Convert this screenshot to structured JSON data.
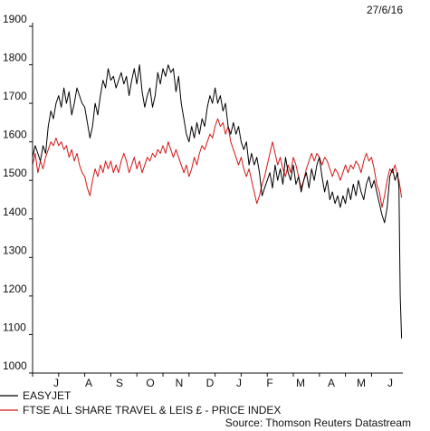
{
  "chart_data": {
    "type": "line",
    "title": "",
    "date_label": "27/6/16",
    "xlabel": "",
    "ylabel": "",
    "ylim": [
      1000,
      1900
    ],
    "yticks": [
      1000,
      1100,
      1200,
      1300,
      1400,
      1500,
      1600,
      1700,
      1800,
      1900
    ],
    "month_labels": [
      "J",
      "A",
      "S",
      "O",
      "N",
      "D",
      "J",
      "F",
      "M",
      "A",
      "M",
      "J"
    ],
    "grid": false,
    "legend_position": "bottom-left",
    "source": "Source: Thomson Reuters Datastream",
    "x_units": "months from June 2015 to June 2016",
    "series": [
      {
        "name": "EASYJET",
        "color": "#000000",
        "points": [
          [
            0.0,
            1560
          ],
          [
            0.1,
            1590
          ],
          [
            0.2,
            1570
          ],
          [
            0.3,
            1550
          ],
          [
            0.4,
            1590
          ],
          [
            0.5,
            1570
          ],
          [
            0.6,
            1640
          ],
          [
            0.7,
            1680
          ],
          [
            0.8,
            1660
          ],
          [
            0.9,
            1700
          ],
          [
            1.0,
            1720
          ],
          [
            1.1,
            1690
          ],
          [
            1.2,
            1740
          ],
          [
            1.3,
            1700
          ],
          [
            1.4,
            1730
          ],
          [
            1.5,
            1670
          ],
          [
            1.6,
            1700
          ],
          [
            1.7,
            1740
          ],
          [
            1.8,
            1720
          ],
          [
            1.9,
            1700
          ],
          [
            2.0,
            1690
          ],
          [
            2.1,
            1650
          ],
          [
            2.2,
            1610
          ],
          [
            2.3,
            1640
          ],
          [
            2.4,
            1700
          ],
          [
            2.5,
            1670
          ],
          [
            2.6,
            1720
          ],
          [
            2.7,
            1760
          ],
          [
            2.8,
            1740
          ],
          [
            2.9,
            1790
          ],
          [
            3.0,
            1760
          ],
          [
            3.1,
            1770
          ],
          [
            3.2,
            1740
          ],
          [
            3.3,
            1760
          ],
          [
            3.4,
            1780
          ],
          [
            3.5,
            1750
          ],
          [
            3.6,
            1770
          ],
          [
            3.7,
            1720
          ],
          [
            3.8,
            1760
          ],
          [
            3.9,
            1790
          ],
          [
            4.0,
            1750
          ],
          [
            4.1,
            1800
          ],
          [
            4.2,
            1730
          ],
          [
            4.3,
            1690
          ],
          [
            4.4,
            1720
          ],
          [
            4.5,
            1740
          ],
          [
            4.6,
            1690
          ],
          [
            4.7,
            1720
          ],
          [
            4.8,
            1780
          ],
          [
            4.9,
            1750
          ],
          [
            5.0,
            1790
          ],
          [
            5.1,
            1770
          ],
          [
            5.2,
            1800
          ],
          [
            5.3,
            1780
          ],
          [
            5.4,
            1790
          ],
          [
            5.5,
            1730
          ],
          [
            5.6,
            1770
          ],
          [
            5.7,
            1700
          ],
          [
            5.8,
            1660
          ],
          [
            5.9,
            1620
          ],
          [
            6.0,
            1600
          ],
          [
            6.1,
            1640
          ],
          [
            6.2,
            1610
          ],
          [
            6.3,
            1650
          ],
          [
            6.4,
            1620
          ],
          [
            6.5,
            1660
          ],
          [
            6.6,
            1640
          ],
          [
            6.7,
            1690
          ],
          [
            6.8,
            1720
          ],
          [
            6.9,
            1700
          ],
          [
            7.0,
            1740
          ],
          [
            7.1,
            1700
          ],
          [
            7.2,
            1720
          ],
          [
            7.3,
            1680
          ],
          [
            7.4,
            1700
          ],
          [
            7.5,
            1640
          ],
          [
            7.6,
            1620
          ],
          [
            7.7,
            1650
          ],
          [
            7.8,
            1620
          ],
          [
            7.9,
            1640
          ],
          [
            8.0,
            1600
          ],
          [
            8.1,
            1580
          ],
          [
            8.2,
            1600
          ],
          [
            8.3,
            1540
          ],
          [
            8.4,
            1570
          ],
          [
            8.5,
            1540
          ],
          [
            8.6,
            1560
          ],
          [
            8.7,
            1520
          ],
          [
            8.8,
            1460
          ],
          [
            8.9,
            1480
          ],
          [
            9.0,
            1500
          ],
          [
            9.1,
            1520
          ],
          [
            9.2,
            1480
          ],
          [
            9.3,
            1540
          ],
          [
            9.4,
            1500
          ],
          [
            9.5,
            1530
          ],
          [
            9.6,
            1490
          ],
          [
            9.7,
            1560
          ],
          [
            9.8,
            1520
          ],
          [
            9.9,
            1500
          ],
          [
            10.0,
            1540
          ],
          [
            10.1,
            1490
          ],
          [
            10.2,
            1510
          ],
          [
            10.3,
            1470
          ],
          [
            10.4,
            1500
          ],
          [
            10.5,
            1520
          ],
          [
            10.6,
            1480
          ],
          [
            10.7,
            1530
          ],
          [
            10.8,
            1500
          ],
          [
            10.9,
            1540
          ],
          [
            11.0,
            1560
          ],
          [
            11.1,
            1510
          ],
          [
            11.2,
            1470
          ],
          [
            11.3,
            1500
          ],
          [
            11.4,
            1450
          ],
          [
            11.5,
            1470
          ],
          [
            11.6,
            1440
          ],
          [
            11.7,
            1460
          ],
          [
            11.8,
            1430
          ],
          [
            11.9,
            1460
          ],
          [
            12.0,
            1440
          ],
          [
            12.1,
            1480
          ],
          [
            12.2,
            1450
          ],
          [
            12.3,
            1490
          ],
          [
            12.4,
            1460
          ],
          [
            12.5,
            1500
          ],
          [
            12.6,
            1470
          ],
          [
            12.7,
            1450
          ],
          [
            12.8,
            1490
          ],
          [
            12.9,
            1510
          ],
          [
            13.0,
            1480
          ],
          [
            13.1,
            1500
          ],
          [
            13.2,
            1470
          ],
          [
            13.3,
            1440
          ],
          [
            13.4,
            1410
          ],
          [
            13.5,
            1390
          ],
          [
            13.6,
            1430
          ],
          [
            13.7,
            1510
          ],
          [
            13.8,
            1530
          ],
          [
            13.9,
            1500
          ],
          [
            14.0,
            1520
          ],
          [
            14.05,
            1480
          ],
          [
            14.1,
            1200
          ],
          [
            14.15,
            1090
          ]
        ]
      },
      {
        "name": "FTSE ALL SHARE TRAVEL & LEIS £ - PRICE INDEX",
        "color": "#d41616",
        "points": [
          [
            0.0,
            1540
          ],
          [
            0.1,
            1570
          ],
          [
            0.2,
            1520
          ],
          [
            0.3,
            1550
          ],
          [
            0.4,
            1530
          ],
          [
            0.5,
            1560
          ],
          [
            0.6,
            1580
          ],
          [
            0.7,
            1600
          ],
          [
            0.8,
            1590
          ],
          [
            0.9,
            1610
          ],
          [
            1.0,
            1590
          ],
          [
            1.1,
            1600
          ],
          [
            1.2,
            1580
          ],
          [
            1.3,
            1590
          ],
          [
            1.4,
            1560
          ],
          [
            1.5,
            1580
          ],
          [
            1.6,
            1550
          ],
          [
            1.7,
            1570
          ],
          [
            1.8,
            1540
          ],
          [
            1.9,
            1520
          ],
          [
            2.0,
            1510
          ],
          [
            2.1,
            1480
          ],
          [
            2.2,
            1460
          ],
          [
            2.3,
            1500
          ],
          [
            2.4,
            1530
          ],
          [
            2.5,
            1510
          ],
          [
            2.6,
            1540
          ],
          [
            2.7,
            1520
          ],
          [
            2.8,
            1550
          ],
          [
            2.9,
            1530
          ],
          [
            3.0,
            1550
          ],
          [
            3.1,
            1520
          ],
          [
            3.2,
            1540
          ],
          [
            3.3,
            1520
          ],
          [
            3.4,
            1550
          ],
          [
            3.5,
            1570
          ],
          [
            3.6,
            1550
          ],
          [
            3.7,
            1520
          ],
          [
            3.8,
            1540
          ],
          [
            3.9,
            1560
          ],
          [
            4.0,
            1530
          ],
          [
            4.1,
            1550
          ],
          [
            4.2,
            1520
          ],
          [
            4.3,
            1540
          ],
          [
            4.4,
            1560
          ],
          [
            4.5,
            1550
          ],
          [
            4.6,
            1570
          ],
          [
            4.7,
            1560
          ],
          [
            4.8,
            1580
          ],
          [
            4.9,
            1570
          ],
          [
            5.0,
            1590
          ],
          [
            5.1,
            1570
          ],
          [
            5.2,
            1600
          ],
          [
            5.3,
            1580
          ],
          [
            5.4,
            1560
          ],
          [
            5.5,
            1580
          ],
          [
            5.6,
            1560
          ],
          [
            5.7,
            1540
          ],
          [
            5.8,
            1520
          ],
          [
            5.9,
            1540
          ],
          [
            6.0,
            1510
          ],
          [
            6.1,
            1530
          ],
          [
            6.2,
            1560
          ],
          [
            6.3,
            1540
          ],
          [
            6.4,
            1570
          ],
          [
            6.5,
            1590
          ],
          [
            6.6,
            1580
          ],
          [
            6.7,
            1600
          ],
          [
            6.8,
            1620
          ],
          [
            6.9,
            1610
          ],
          [
            7.0,
            1640
          ],
          [
            7.1,
            1660
          ],
          [
            7.2,
            1640
          ],
          [
            7.3,
            1650
          ],
          [
            7.4,
            1620
          ],
          [
            7.5,
            1640
          ],
          [
            7.6,
            1600
          ],
          [
            7.7,
            1580
          ],
          [
            7.8,
            1560
          ],
          [
            7.9,
            1540
          ],
          [
            8.0,
            1560
          ],
          [
            8.1,
            1530
          ],
          [
            8.2,
            1510
          ],
          [
            8.3,
            1530
          ],
          [
            8.4,
            1500
          ],
          [
            8.5,
            1470
          ],
          [
            8.6,
            1440
          ],
          [
            8.7,
            1460
          ],
          [
            8.8,
            1490
          ],
          [
            8.9,
            1510
          ],
          [
            9.0,
            1540
          ],
          [
            9.1,
            1570
          ],
          [
            9.2,
            1600
          ],
          [
            9.3,
            1570
          ],
          [
            9.4,
            1540
          ],
          [
            9.5,
            1560
          ],
          [
            9.6,
            1530
          ],
          [
            9.7,
            1510
          ],
          [
            9.8,
            1540
          ],
          [
            9.9,
            1520
          ],
          [
            10.0,
            1560
          ],
          [
            10.1,
            1540
          ],
          [
            10.2,
            1510
          ],
          [
            10.3,
            1480
          ],
          [
            10.4,
            1500
          ],
          [
            10.5,
            1530
          ],
          [
            10.6,
            1550
          ],
          [
            10.7,
            1570
          ],
          [
            10.8,
            1550
          ],
          [
            10.9,
            1570
          ],
          [
            11.0,
            1560
          ],
          [
            11.1,
            1540
          ],
          [
            11.2,
            1560
          ],
          [
            11.3,
            1550
          ],
          [
            11.4,
            1530
          ],
          [
            11.5,
            1510
          ],
          [
            11.6,
            1530
          ],
          [
            11.7,
            1520
          ],
          [
            11.8,
            1500
          ],
          [
            11.9,
            1520
          ],
          [
            12.0,
            1540
          ],
          [
            12.1,
            1520
          ],
          [
            12.2,
            1540
          ],
          [
            12.3,
            1530
          ],
          [
            12.4,
            1550
          ],
          [
            12.5,
            1540
          ],
          [
            12.6,
            1520
          ],
          [
            12.7,
            1550
          ],
          [
            12.8,
            1570
          ],
          [
            12.9,
            1550
          ],
          [
            13.0,
            1560
          ],
          [
            13.1,
            1530
          ],
          [
            13.2,
            1490
          ],
          [
            13.3,
            1470
          ],
          [
            13.4,
            1430
          ],
          [
            13.5,
            1460
          ],
          [
            13.6,
            1500
          ],
          [
            13.7,
            1530
          ],
          [
            13.8,
            1520
          ],
          [
            13.9,
            1540
          ],
          [
            14.0,
            1510
          ],
          [
            14.05,
            1500
          ],
          [
            14.1,
            1480
          ],
          [
            14.15,
            1455
          ]
        ]
      }
    ]
  }
}
